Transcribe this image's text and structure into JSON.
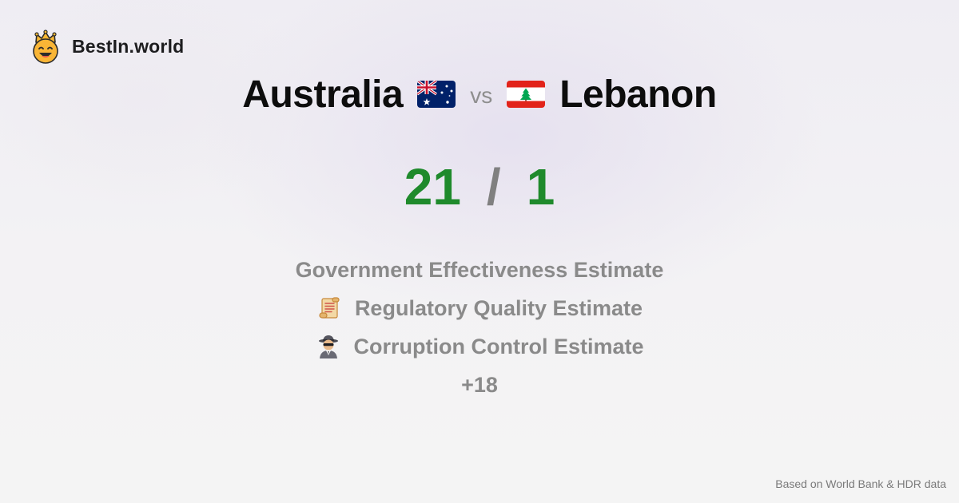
{
  "brand": {
    "name": "BestIn.world",
    "logo_icon": "crown-smiley-icon"
  },
  "comparison": {
    "country_a": {
      "name": "Australia",
      "flag_icon": "australia-flag-icon"
    },
    "vs_label": "vs",
    "country_b": {
      "name": "Lebanon",
      "flag_icon": "lebanon-flag-icon"
    }
  },
  "score": {
    "a": "21",
    "separator": "/",
    "b": "1"
  },
  "metrics": [
    {
      "label": "Government Effectiveness Estimate",
      "icon": ""
    },
    {
      "label": "Regulatory Quality Estimate",
      "icon": "scroll-icon"
    },
    {
      "label": "Corruption Control Estimate",
      "icon": "detective-icon"
    }
  ],
  "more_label": "+18",
  "footer": {
    "source": "Based on World Bank & HDR data"
  },
  "colors": {
    "score_green": "#1f8a2c",
    "muted_gray": "#8a8a8a"
  }
}
